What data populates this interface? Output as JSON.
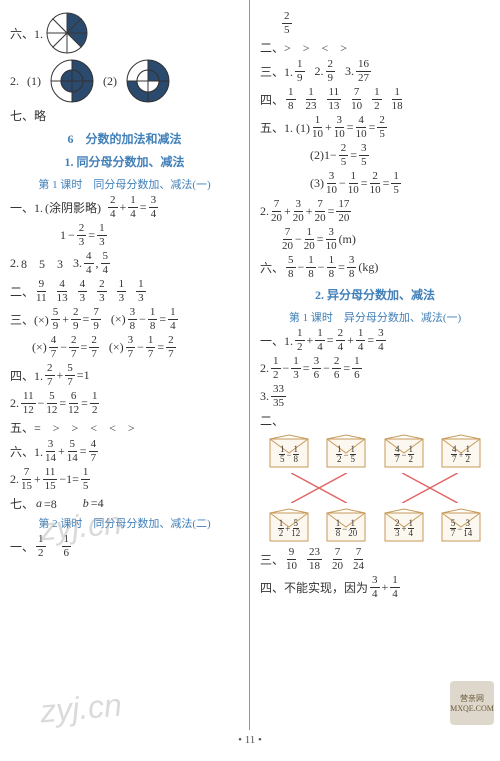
{
  "left": {
    "l1": "六、1.",
    "pie1": {
      "slices": 8,
      "filled": [
        0,
        1,
        2
      ],
      "colors": {
        "fill": "#2a4a6e",
        "stroke": "#3a3a3a"
      }
    },
    "l2a": "2.",
    "l2b": "(1)",
    "l2c": "(2)",
    "donut1": {
      "outerFilled": [
        0,
        1
      ],
      "innerFilled": [
        0,
        1,
        2,
        3
      ],
      "fill": "#2a4a6e",
      "stroke": "#333"
    },
    "donut2": {
      "outerFilled": [
        0,
        1,
        2
      ],
      "innerFilled": [
        0
      ],
      "fill": "#2a4a6e",
      "stroke": "#333"
    },
    "l3": "七、略",
    "chapter": "6　分数的加法和减法",
    "sub1": "1. 同分母分数加、减法",
    "lesson1": "第 1 课时　同分母分数加、减法(一)",
    "l4a": "一、1.",
    "l4b": "(涂阴影略)",
    "eq1": {
      "a": "2",
      "ad": "4",
      "op": "+",
      "b": "1",
      "bd": "4",
      "r": "3",
      "rd": "4"
    },
    "eq2": {
      "pre": "1",
      "op": "−",
      "b": "2",
      "bd": "3",
      "r": "1",
      "rd": "3"
    },
    "l6a": "2.",
    "l6b": "8　5　3",
    "l6c": "3.",
    "l6d": {
      "n": "4",
      "d": "4"
    },
    "l6e": ",",
    "l6f": {
      "n": "5",
      "d": "4"
    },
    "l7a": "二、",
    "l7v": [
      [
        "9",
        "11"
      ],
      [
        "4",
        "13"
      ],
      [
        "4",
        "3"
      ],
      [
        "2",
        "3"
      ],
      [
        "1",
        "3"
      ],
      [
        "1",
        "3"
      ]
    ],
    "l8a": "三、(×)",
    "eq3": {
      "a": "5",
      "ad": "9",
      "op": "+",
      "b": "2",
      "bd": "9",
      "r": "7",
      "rd": "9"
    },
    "l8b": "(×)",
    "eq4": {
      "a": "3",
      "ad": "8",
      "op": "−",
      "b": "1",
      "bd": "8",
      "r": "1",
      "rd": "4"
    },
    "l9a": "(×)",
    "eq5": {
      "a": "4",
      "ad": "7",
      "op": "−",
      "b": "2",
      "bd": "7",
      "r": "2",
      "rd": "7"
    },
    "l9b": "(×)",
    "eq6": {
      "a": "3",
      "ad": "7",
      "op": "−",
      "b": "1",
      "bd": "7",
      "r": "2",
      "rd": "7"
    },
    "l10a": "四、1.",
    "l10f1": {
      "n": "2",
      "d": "7"
    },
    "l10t": "+",
    "l10f2": {
      "n": "5",
      "d": "7"
    },
    "l10e": "=1",
    "l11a": "2.",
    "l11f1": {
      "n": "11",
      "d": "12"
    },
    "l11t": "−",
    "l11f2": {
      "n": "5",
      "d": "12"
    },
    "l11e": "=",
    "l11f3": {
      "n": "6",
      "d": "12"
    },
    "l11e2": "=",
    "l11f4": {
      "n": "1",
      "d": "2"
    },
    "l12": "五、=　>　>　<　<　>",
    "l13a": "六、1.",
    "eq7": {
      "a": "3",
      "ad": "14",
      "op": "+",
      "b": "5",
      "bd": "14",
      "r": "4",
      "rd": "7"
    },
    "l14a": "2.",
    "l14f1": {
      "n": "7",
      "d": "15"
    },
    "l14t": "+",
    "l14f2": {
      "n": "11",
      "d": "15"
    },
    "l14e": "−1=",
    "l14f3": {
      "n": "1",
      "d": "5"
    },
    "l15pre": "七、",
    "l15i": "a",
    "l15eq": "=8　　",
    "l15i2": "b",
    "l15eq2": "=4",
    "lesson2": "第 2 课时　同分母分数加、减法(二)",
    "l16a": "一、",
    "l16f": {
      "n": "1",
      "d": "2"
    },
    "l16t": "　",
    "l16f2": {
      "n": "1",
      "d": "6"
    }
  },
  "right": {
    "r0": {
      "n": "2",
      "d": "5"
    },
    "r1": "二、>　>　<　>",
    "r2a": "三、1.",
    "r2f1": {
      "n": "1",
      "d": "9"
    },
    "r2b": "2.",
    "r2f2": {
      "n": "2",
      "d": "9"
    },
    "r2c": "3.",
    "r2f3": {
      "n": "16",
      "d": "27"
    },
    "r3a": "四、",
    "r3v": [
      [
        "1",
        "8"
      ],
      [
        "1",
        "23"
      ],
      [
        "11",
        "13"
      ],
      [
        "7",
        "10"
      ],
      [
        "1",
        "2"
      ],
      [
        "1",
        "18"
      ]
    ],
    "r4a": "五、1. (1)",
    "eq8": {
      "a": "1",
      "ad": "10",
      "op": "+",
      "b": "3",
      "bd": "10",
      "r": "4",
      "rd": "10"
    },
    "r4e": "=",
    "r4f": {
      "n": "2",
      "d": "5"
    },
    "r5a": "(2)1−",
    "r5f": {
      "n": "2",
      "d": "5"
    },
    "r5e": "=",
    "r5f2": {
      "n": "3",
      "d": "5"
    },
    "r6a": "(3)",
    "eq9": {
      "a": "3",
      "ad": "10",
      "op": "−",
      "b": "1",
      "bd": "10",
      "r": "2",
      "rd": "10"
    },
    "r6e": "=",
    "r6f": {
      "n": "1",
      "d": "5"
    },
    "r7a": "2.",
    "r7f1": {
      "n": "7",
      "d": "20"
    },
    "r7t": "+",
    "r7f2": {
      "n": "3",
      "d": "20"
    },
    "r7t2": "+",
    "r7f3": {
      "n": "7",
      "d": "20"
    },
    "r7e": "=",
    "r7f4": {
      "n": "17",
      "d": "20"
    },
    "r8f1": {
      "n": "7",
      "d": "20"
    },
    "r8t": "−",
    "r8f2": {
      "n": "1",
      "d": "20"
    },
    "r8e": "=",
    "r8f3": {
      "n": "3",
      "d": "10"
    },
    "r8u": "(m)",
    "r9a": "六、",
    "r9f1": {
      "n": "5",
      "d": "8"
    },
    "r9t": "−",
    "r9f2": {
      "n": "1",
      "d": "8"
    },
    "r9t2": "−",
    "r9f3": {
      "n": "1",
      "d": "8"
    },
    "r9e": "=",
    "r9f4": {
      "n": "3",
      "d": "8"
    },
    "r9u": "(kg)",
    "sub2": "2. 异分母分数加、减法",
    "lesson2": "第 1 课时　异分母分数加、减法(一)",
    "r10a": "一、1.",
    "eq10": {
      "a": "1",
      "ad": "2",
      "op": "+",
      "b": "1",
      "bd": "4",
      "r1": "2",
      "r1d": "4",
      "op2": "+",
      "r2": "1",
      "r2d": "4",
      "rr": "3",
      "rrd": "4"
    },
    "r11a": "2.",
    "eq11": {
      "a": "1",
      "ad": "2",
      "op": "−",
      "b": "1",
      "bd": "3",
      "r1": "3",
      "r1d": "6",
      "op2": "−",
      "r2": "2",
      "r2d": "6",
      "rr": "1",
      "rrd": "6"
    },
    "r12a": "3.",
    "r12f": {
      "n": "33",
      "d": "35"
    },
    "r13": "二、",
    "envTop": [
      {
        "a": "1",
        "ad": "5",
        "op": "−",
        "b": "1",
        "bd": "8"
      },
      {
        "a": "1",
        "ad": "2",
        "op": "−",
        "b": "1",
        "bd": "5"
      },
      {
        "a": "4",
        "ad": "7",
        "op": "−",
        "b": "1",
        "bd": "2"
      },
      {
        "a": "4",
        "ad": "7",
        "op": "+",
        "b": "1",
        "bd": "2"
      }
    ],
    "envBot": [
      {
        "a": "1",
        "ad": "2",
        "op": "+",
        "b": "5",
        "bd": "12"
      },
      {
        "a": "1",
        "ad": "8",
        "op": "−",
        "b": "1",
        "bd": "20"
      },
      {
        "a": "2",
        "ad": "3",
        "op": "+",
        "b": "1",
        "bd": "4"
      },
      {
        "a": "5",
        "ad": "7",
        "op": "−",
        "b": "3",
        "bd": "14"
      }
    ],
    "cross": {
      "stroke": "#e06868",
      "lines": [
        [
          0,
          1
        ],
        [
          1,
          0
        ],
        [
          2,
          3
        ],
        [
          3,
          2
        ]
      ]
    },
    "r14a": "三、",
    "r14v": [
      [
        "9",
        "10"
      ],
      [
        "23",
        "18"
      ],
      [
        "7",
        "20"
      ],
      [
        "7",
        "24"
      ]
    ],
    "r15": "四、不能实现，因为",
    "r15f1": {
      "n": "3",
      "d": "4"
    },
    "r15t": "+",
    "r15f2": {
      "n": "1",
      "d": "4"
    }
  },
  "footer": "• 11 •",
  "wm": "zyj.cn",
  "logo": {
    "t1": "营亲网",
    "t2": "MXQE.COM"
  }
}
